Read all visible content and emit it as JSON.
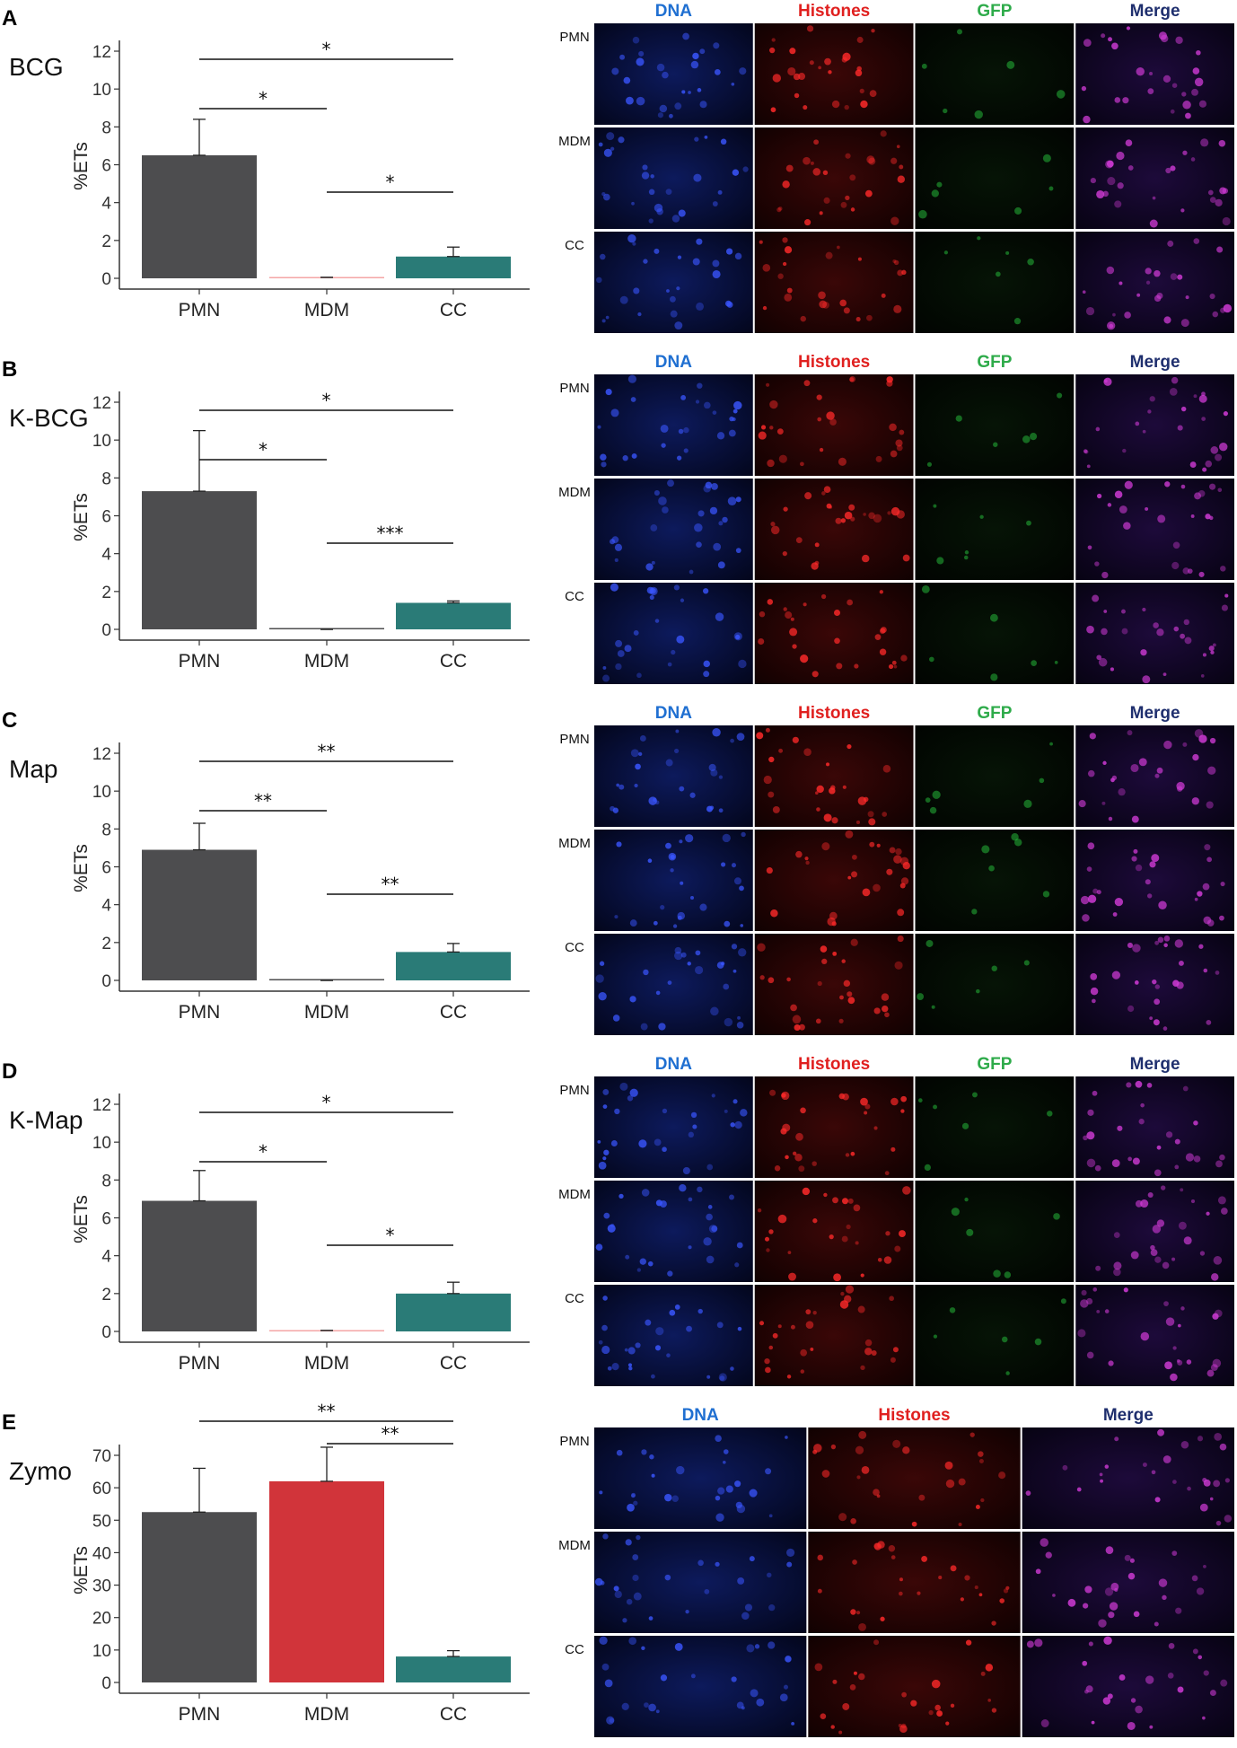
{
  "colors": {
    "pmn": "#4d4d4f",
    "mdm_small": "#f4a6a6",
    "mdm_zymo": "#d1343a",
    "cc": "#2a7b77",
    "dna": "#1f6fd1",
    "histones": "#e0201f",
    "gfp": "#2eab4a",
    "merge": "#1f2f6e"
  },
  "micrograph_row_labels": [
    "PMN",
    "MDM",
    "CC"
  ],
  "micrograph_headers": [
    "DNA",
    "Histones",
    "GFP",
    "Merge"
  ],
  "micrograph_headers_zymo": [
    "DNA",
    "Histones",
    "Merge"
  ],
  "chart_data": [
    {
      "panel": "A",
      "stimulus": "BCG",
      "type": "bar",
      "categories": [
        "PMN",
        "MDM",
        "CC"
      ],
      "values": [
        6.5,
        0.05,
        1.15
      ],
      "errors": [
        1.9,
        0.0,
        0.5
      ],
      "ylabel": "%ETs",
      "ylim": [
        0,
        12
      ],
      "yticks": [
        0,
        2,
        4,
        6,
        8,
        10,
        12
      ],
      "bar_colors": [
        "#4d4d4f",
        "#f4a6a6",
        "#2a7b77"
      ],
      "significance": [
        {
          "pair": [
            "PMN",
            "CC"
          ],
          "label": "*",
          "level": 1
        },
        {
          "pair": [
            "PMN",
            "MDM"
          ],
          "label": "*",
          "level": 0
        },
        {
          "pair": [
            "MDM",
            "CC"
          ],
          "label": "*",
          "level": -1
        }
      ],
      "micrograph_headers": [
        "DNA",
        "Histones",
        "GFP",
        "Merge"
      ]
    },
    {
      "panel": "B",
      "stimulus": "K-BCG",
      "type": "bar",
      "categories": [
        "PMN",
        "MDM",
        "CC"
      ],
      "values": [
        7.3,
        0.0,
        1.4
      ],
      "errors": [
        3.2,
        0.0,
        0.1
      ],
      "ylabel": "%ETs",
      "ylim": [
        0,
        12
      ],
      "yticks": [
        0,
        2,
        4,
        6,
        8,
        10,
        12
      ],
      "bar_colors": [
        "#4d4d4f",
        "#4d4d4f",
        "#2a7b77"
      ],
      "significance": [
        {
          "pair": [
            "PMN",
            "CC"
          ],
          "label": "*",
          "level": 1
        },
        {
          "pair": [
            "PMN",
            "MDM"
          ],
          "label": "*",
          "level": 0
        },
        {
          "pair": [
            "MDM",
            "CC"
          ],
          "label": "***",
          "level": -1
        }
      ],
      "micrograph_headers": [
        "DNA",
        "Histones",
        "GFP",
        "Merge"
      ]
    },
    {
      "panel": "C",
      "stimulus": "Map",
      "type": "bar",
      "categories": [
        "PMN",
        "MDM",
        "CC"
      ],
      "values": [
        6.9,
        0.0,
        1.5
      ],
      "errors": [
        1.4,
        0.0,
        0.45
      ],
      "ylabel": "%ETs",
      "ylim": [
        0,
        12
      ],
      "yticks": [
        0,
        2,
        4,
        6,
        8,
        10,
        12
      ],
      "bar_colors": [
        "#4d4d4f",
        "#4d4d4f",
        "#2a7b77"
      ],
      "significance": [
        {
          "pair": [
            "PMN",
            "CC"
          ],
          "label": "**",
          "level": 1
        },
        {
          "pair": [
            "PMN",
            "MDM"
          ],
          "label": "**",
          "level": 0
        },
        {
          "pair": [
            "MDM",
            "CC"
          ],
          "label": "**",
          "level": -1
        }
      ],
      "micrograph_headers": [
        "DNA",
        "Histones",
        "GFP",
        "Merge"
      ]
    },
    {
      "panel": "D",
      "stimulus": "K-Map",
      "type": "bar",
      "categories": [
        "PMN",
        "MDM",
        "CC"
      ],
      "values": [
        6.9,
        0.05,
        2.0
      ],
      "errors": [
        1.6,
        0.0,
        0.6
      ],
      "ylabel": "%ETs",
      "ylim": [
        0,
        12
      ],
      "yticks": [
        0,
        2,
        4,
        6,
        8,
        10,
        12
      ],
      "bar_colors": [
        "#4d4d4f",
        "#f4a6a6",
        "#2a7b77"
      ],
      "significance": [
        {
          "pair": [
            "PMN",
            "CC"
          ],
          "label": "*",
          "level": 1
        },
        {
          "pair": [
            "PMN",
            "MDM"
          ],
          "label": "*",
          "level": 0
        },
        {
          "pair": [
            "MDM",
            "CC"
          ],
          "label": "*",
          "level": -1
        }
      ],
      "micrograph_headers": [
        "DNA",
        "Histones",
        "GFP",
        "Merge"
      ]
    },
    {
      "panel": "E",
      "stimulus": "Zymo",
      "type": "bar",
      "categories": [
        "PMN",
        "MDM",
        "CC"
      ],
      "values": [
        52.5,
        62.0,
        8.0
      ],
      "errors": [
        13.5,
        10.5,
        1.8
      ],
      "ylabel": "%ETs",
      "ylim": [
        0,
        70
      ],
      "yticks": [
        0,
        10,
        20,
        30,
        40,
        50,
        60,
        70
      ],
      "bar_colors": [
        "#4d4d4f",
        "#d1343a",
        "#2a7b77"
      ],
      "significance": [
        {
          "pair": [
            "PMN",
            "CC"
          ],
          "label": "**",
          "level": 1
        },
        {
          "pair": [
            "MDM",
            "CC"
          ],
          "label": "**",
          "level": 0
        }
      ],
      "micrograph_headers": [
        "DNA",
        "Histones",
        "Merge"
      ]
    }
  ]
}
